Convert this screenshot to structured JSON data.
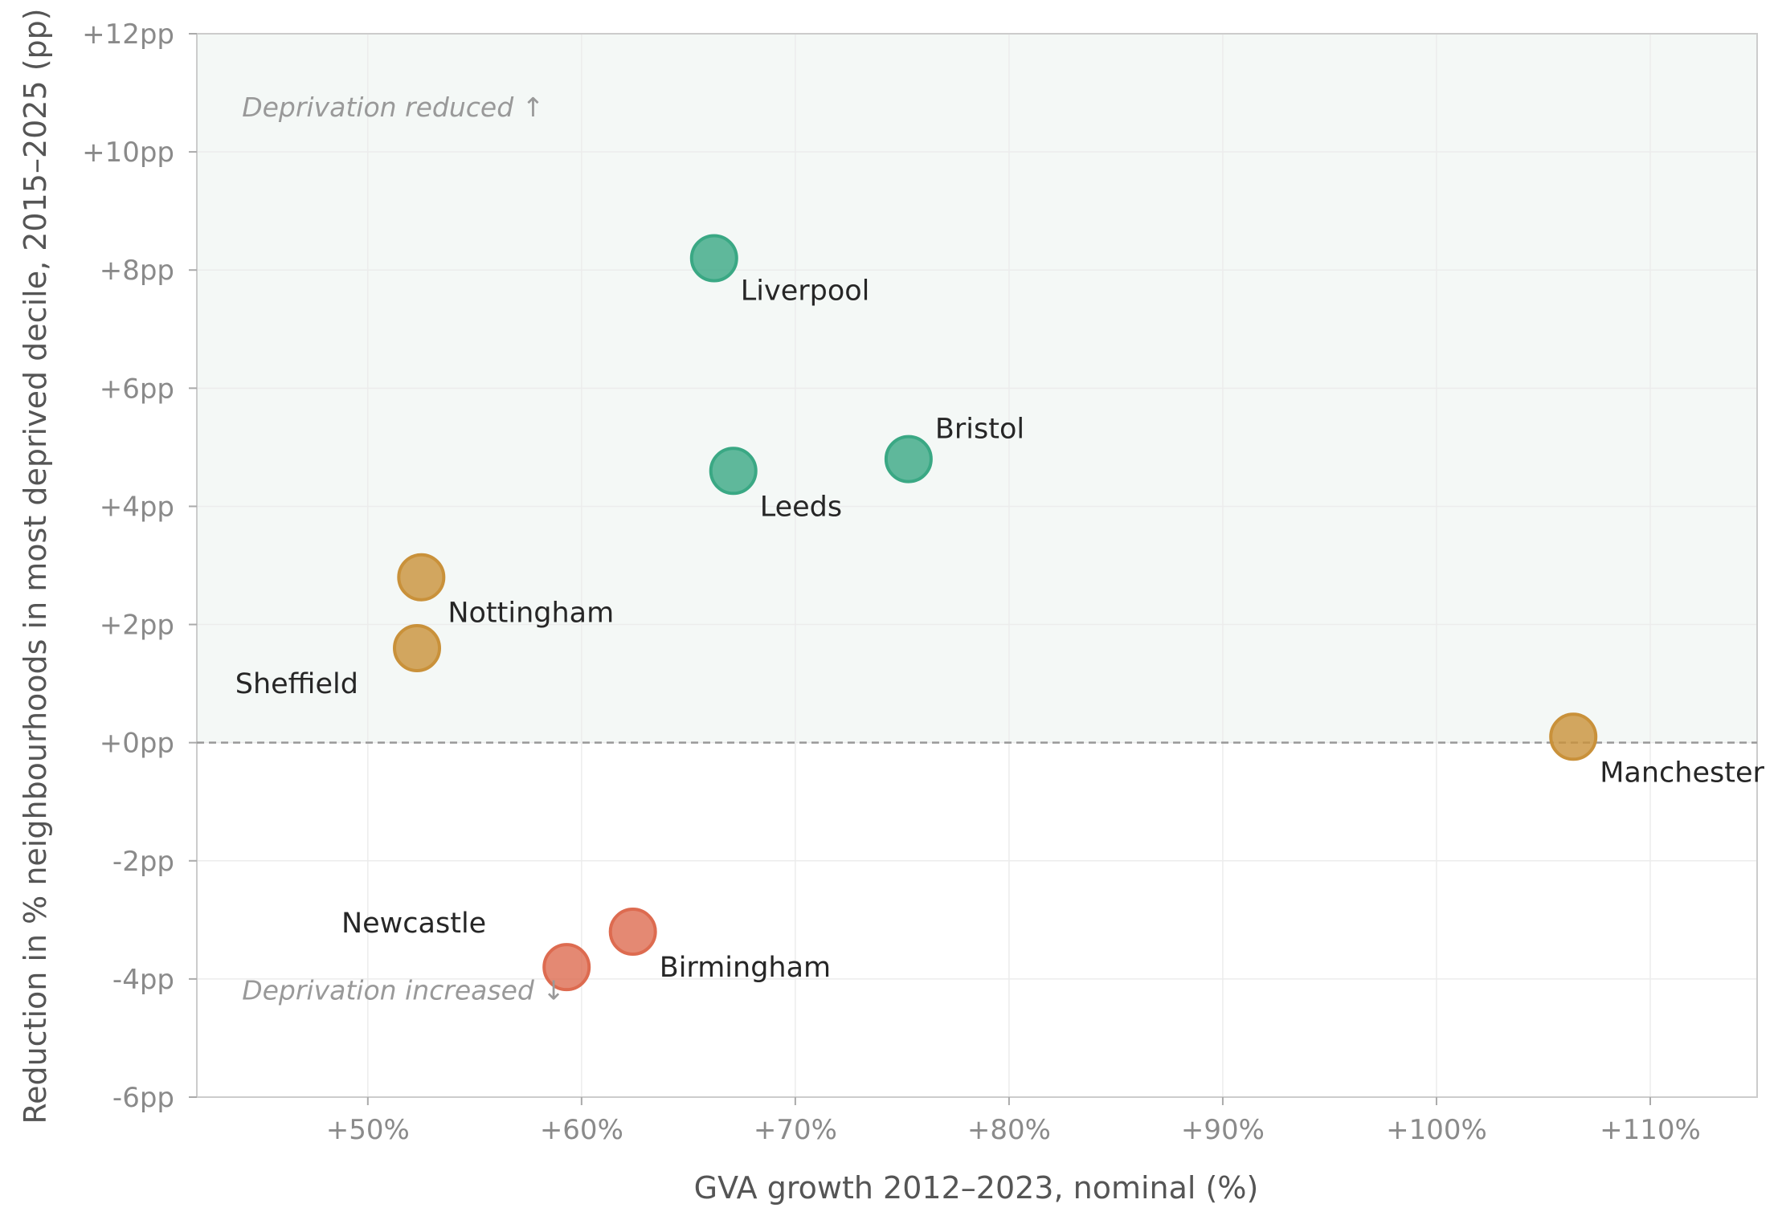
{
  "chart_data": {
    "type": "scatter",
    "title": "",
    "xlabel": "GVA growth 2012–2023, nominal (%)",
    "ylabel": "Reduction in % neighbourhoods in most deprived decile, 2015–2025 (pp)",
    "xlim": [
      42,
      115
    ],
    "ylim": [
      -6,
      12
    ],
    "x_ticks": [
      50,
      60,
      70,
      80,
      90,
      100,
      110
    ],
    "x_tick_labels": [
      "+50%",
      "+60%",
      "+70%",
      "+80%",
      "+90%",
      "+100%",
      "+110%"
    ],
    "y_ticks": [
      -6,
      -4,
      -2,
      0,
      2,
      4,
      6,
      8,
      10,
      12
    ],
    "y_tick_labels": [
      "-6pp",
      "-4pp",
      "-2pp",
      "+0pp",
      "+2pp",
      "+4pp",
      "+6pp",
      "+8pp",
      "+10pp",
      "+12pp"
    ],
    "grid": true,
    "reference_line_y": 0,
    "positive_region_shaded": true,
    "colors": {
      "green": "#3aa884",
      "amber": "#c9913a",
      "red": "#dd6b50",
      "positive_region": "#f4f8f6"
    },
    "points": [
      {
        "label": "Liverpool",
        "x": 66.2,
        "y": 8.2,
        "color": "green"
      },
      {
        "label": "Bristol",
        "x": 75.3,
        "y": 4.8,
        "color": "green"
      },
      {
        "label": "Leeds",
        "x": 67.1,
        "y": 4.6,
        "color": "green"
      },
      {
        "label": "Nottingham",
        "x": 52.5,
        "y": 2.8,
        "color": "amber"
      },
      {
        "label": "Sheffield",
        "x": 52.3,
        "y": 1.6,
        "color": "amber"
      },
      {
        "label": "Manchester",
        "x": 106.4,
        "y": 0.1,
        "color": "amber"
      },
      {
        "label": "Birmingham",
        "x": 62.4,
        "y": -3.2,
        "color": "red"
      },
      {
        "label": "Newcastle",
        "x": 59.3,
        "y": -3.8,
        "color": "red"
      }
    ],
    "annotations": [
      {
        "text": "Deprivation reduced ↑",
        "x": 44,
        "y": 10.6
      },
      {
        "text": "Deprivation increased ↓",
        "x": 44,
        "y": -4.35
      }
    ]
  }
}
